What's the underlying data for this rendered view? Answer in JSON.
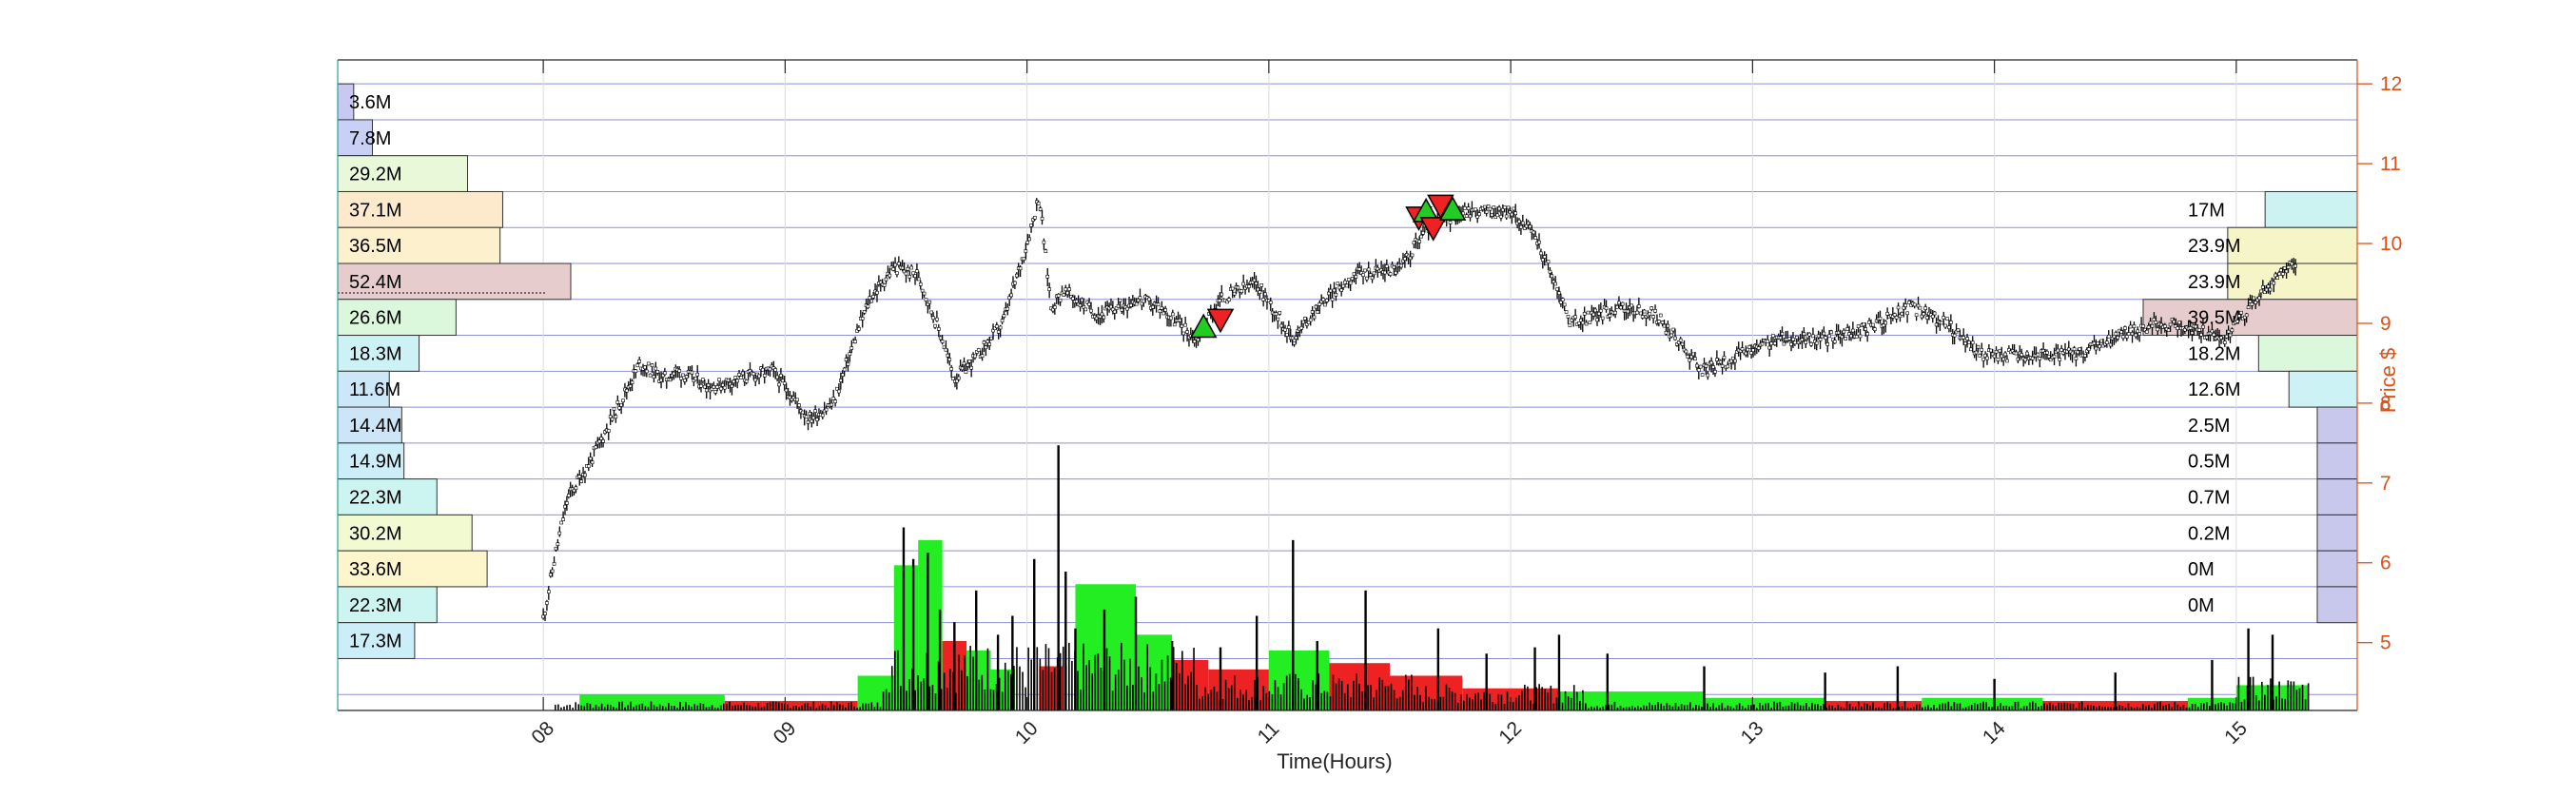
{
  "chart_data": {
    "type": "candlestick-volume-profile",
    "xlabel": "Time(Hours)",
    "ylabel": "Price $",
    "xlim": [
      7.15,
      15.5
    ],
    "ylim": [
      4.15,
      12.3
    ],
    "x_ticks": [
      8,
      9,
      10,
      11,
      12,
      13,
      14,
      15
    ],
    "x_tick_labels": [
      "08",
      "09",
      "10",
      "11",
      "12",
      "13",
      "14",
      "15"
    ],
    "y_ticks": [
      5,
      6,
      7,
      8,
      9,
      10,
      11,
      12
    ],
    "grid": true,
    "colors": {
      "axis_right": "#d95319",
      "grid": "#8f8fd6",
      "up_volume": "#22ee22",
      "down_volume": "#ee2222",
      "candle": "#000000"
    },
    "price_levels": [
      {
        "price": 12.0,
        "left": "3.6M",
        "right": "17M"
      },
      {
        "price": 11.0,
        "left": "7.8M",
        "right": "23.9M"
      },
      {
        "price": 10.0,
        "left": "29.2M",
        "right": "23.9M"
      },
      {
        "price": 9.0,
        "left": "37.1M",
        "right": "39.5M"
      },
      {
        "price": 8.0,
        "left": "36.5M",
        "right": "18.2M"
      },
      {
        "price": 7.0,
        "left": "52.4M",
        "right": "12.6M"
      },
      {
        "price": 6.0,
        "left": "26.6M",
        "right": "2.5M"
      },
      {
        "price": 5.0,
        "left": "18.3M",
        "right": "0.5M"
      }
    ],
    "left_profile": [
      {
        "label": "3.6M",
        "value": 3.6,
        "price_low": 11.55,
        "price_high": 12.0,
        "color": "#c8c8f0"
      },
      {
        "label": "7.8M",
        "value": 7.8,
        "price_low": 11.1,
        "price_high": 11.55,
        "color": "#c8d0f5"
      },
      {
        "label": "29.2M",
        "value": 29.2,
        "price_low": 10.65,
        "price_high": 11.1,
        "color": "#e8f8d8"
      },
      {
        "label": "37.1M",
        "value": 37.1,
        "price_low": 10.2,
        "price_high": 10.65,
        "color": "#fde9cc"
      },
      {
        "label": "36.5M",
        "value": 36.5,
        "price_low": 9.75,
        "price_high": 10.2,
        "color": "#fdf0cc"
      },
      {
        "label": "52.4M",
        "value": 52.4,
        "price_low": 9.3,
        "price_high": 9.75,
        "color": "#e6cccc"
      },
      {
        "label": "26.6M",
        "value": 26.6,
        "price_low": 8.85,
        "price_high": 9.3,
        "color": "#dcf8dc"
      },
      {
        "label": "18.3M",
        "value": 18.3,
        "price_low": 8.4,
        "price_high": 8.85,
        "color": "#ccf2f5"
      },
      {
        "label": "11.6M",
        "value": 11.6,
        "price_low": 7.95,
        "price_high": 8.4,
        "color": "#cce8f8"
      },
      {
        "label": "14.4M",
        "value": 14.4,
        "price_low": 7.5,
        "price_high": 7.95,
        "color": "#cce6f8"
      },
      {
        "label": "14.9M",
        "value": 14.9,
        "price_low": 7.05,
        "price_high": 7.5,
        "color": "#cceef8"
      },
      {
        "label": "22.3M",
        "value": 22.3,
        "price_low": 6.6,
        "price_high": 7.05,
        "color": "#ccf5f2"
      },
      {
        "label": "30.2M",
        "value": 30.2,
        "price_low": 6.15,
        "price_high": 6.6,
        "color": "#f2fad2"
      },
      {
        "label": "33.6M",
        "value": 33.6,
        "price_low": 5.7,
        "price_high": 6.15,
        "color": "#fdf6cc"
      },
      {
        "label": "22.3M",
        "value": 22.3,
        "price_low": 5.25,
        "price_high": 5.7,
        "color": "#ccf5f2"
      },
      {
        "label": "17.3M",
        "value": 17.3,
        "price_low": 4.8,
        "price_high": 5.25,
        "color": "#cceef8"
      }
    ],
    "right_profile": [
      {
        "label": "17M",
        "value": 17.0,
        "price_low": 10.2,
        "price_high": 10.65,
        "color": "#ccf2f2"
      },
      {
        "label": "23.9M",
        "value": 23.9,
        "price_low": 9.75,
        "price_high": 10.2,
        "color": "#f5f5c8"
      },
      {
        "label": "23.9M",
        "value": 23.9,
        "price_low": 9.3,
        "price_high": 9.75,
        "color": "#f5f5c8"
      },
      {
        "label": "39.5M",
        "value": 39.5,
        "price_low": 8.85,
        "price_high": 9.3,
        "color": "#e6cccc"
      },
      {
        "label": "18.2M",
        "value": 18.2,
        "price_low": 8.4,
        "price_high": 8.85,
        "color": "#dcf8dc"
      },
      {
        "label": "12.6M",
        "value": 12.6,
        "price_low": 7.95,
        "price_high": 8.4,
        "color": "#ccf2f5"
      },
      {
        "label": "2.5M",
        "value": 2.5,
        "price_low": 7.5,
        "price_high": 7.95,
        "color": "#c8c8ec"
      },
      {
        "label": "0.5M",
        "value": 0.5,
        "price_low": 7.05,
        "price_high": 7.5,
        "color": "#c8c8ec"
      },
      {
        "label": "0.7M",
        "value": 0.7,
        "price_low": 6.6,
        "price_high": 7.05,
        "color": "#c8c8ec"
      },
      {
        "label": "0.2M",
        "value": 0.2,
        "price_low": 6.15,
        "price_high": 6.6,
        "color": "#c8c8ec"
      },
      {
        "label": "0M",
        "value": 0.0,
        "price_low": 5.7,
        "price_high": 6.15,
        "color": "#c8c8ec"
      },
      {
        "label": "0M",
        "value": 0.0,
        "price_low": 5.25,
        "price_high": 5.7,
        "color": "#c8c8ec"
      }
    ],
    "poc_price": 9.5,
    "price_series": {
      "x": [
        8.0,
        8.05,
        8.1,
        8.2,
        8.3,
        8.4,
        8.5,
        8.55,
        8.7,
        8.8,
        8.95,
        9.1,
        9.2,
        9.3,
        9.35,
        9.45,
        9.55,
        9.65,
        9.7,
        9.8,
        9.9,
        10.0,
        10.05,
        10.1,
        10.15,
        10.3,
        10.45,
        10.55,
        10.7,
        10.8,
        10.95,
        11.1,
        11.2,
        11.35,
        11.55,
        11.65,
        11.8,
        12.0,
        12.1,
        12.25,
        12.45,
        12.6,
        12.8,
        12.95,
        13.1,
        13.3,
        13.45,
        13.65,
        13.8,
        13.95,
        14.15,
        14.35,
        14.55,
        14.7,
        14.85,
        14.95,
        15.05,
        15.15,
        15.25
      ],
      "y": [
        5.3,
        6.1,
        6.8,
        7.3,
        7.9,
        8.5,
        8.3,
        8.4,
        8.2,
        8.3,
        8.4,
        7.8,
        8.0,
        8.9,
        9.3,
        9.7,
        9.6,
        8.8,
        8.3,
        8.6,
        9.0,
        10.0,
        10.6,
        9.2,
        9.4,
        9.1,
        9.3,
        9.2,
        8.8,
        9.3,
        9.5,
        8.8,
        9.2,
        9.6,
        9.7,
        10.2,
        10.4,
        10.4,
        10.1,
        9.0,
        9.2,
        9.1,
        8.4,
        8.6,
        8.8,
        8.8,
        8.9,
        9.2,
        9.0,
        8.6,
        8.6,
        8.6,
        8.9,
        9.0,
        8.9,
        8.8,
        9.2,
        9.5,
        9.8
      ]
    },
    "markers": [
      {
        "type": "buy",
        "x": 10.73,
        "y": 8.95,
        "color": "#22cc22"
      },
      {
        "type": "sell",
        "x": 10.8,
        "y": 9.05,
        "color": "#ee2222"
      },
      {
        "type": "sell",
        "x": 11.62,
        "y": 10.33,
        "color": "#ee2222"
      },
      {
        "type": "buy",
        "x": 11.65,
        "y": 10.4,
        "color": "#22cc22"
      },
      {
        "type": "sell",
        "x": 11.68,
        "y": 10.2,
        "color": "#ee2222"
      },
      {
        "type": "sell",
        "x": 11.71,
        "y": 10.48,
        "color": "#ee2222"
      },
      {
        "type": "buy",
        "x": 11.76,
        "y": 10.42,
        "color": "#22cc22"
      }
    ],
    "volume_blocks": [
      {
        "x0": 8.15,
        "x1": 8.75,
        "value": 0.25,
        "side": "up"
      },
      {
        "x0": 8.75,
        "x1": 9.3,
        "value": 0.15,
        "side": "down"
      },
      {
        "x0": 9.3,
        "x1": 9.45,
        "value": 0.55,
        "side": "up"
      },
      {
        "x0": 9.45,
        "x1": 9.55,
        "value": 2.3,
        "side": "up"
      },
      {
        "x0": 9.55,
        "x1": 9.65,
        "value": 2.7,
        "side": "up"
      },
      {
        "x0": 9.65,
        "x1": 9.75,
        "value": 1.1,
        "side": "down"
      },
      {
        "x0": 9.75,
        "x1": 9.85,
        "value": 0.95,
        "side": "up"
      },
      {
        "x0": 9.85,
        "x1": 9.95,
        "value": 0.65,
        "side": "up"
      },
      {
        "x0": 10.05,
        "x1": 10.15,
        "value": 0.7,
        "side": "down"
      },
      {
        "x0": 10.2,
        "x1": 10.45,
        "value": 2.0,
        "side": "up"
      },
      {
        "x0": 10.45,
        "x1": 10.6,
        "value": 1.2,
        "side": "up"
      },
      {
        "x0": 10.6,
        "x1": 10.75,
        "value": 0.8,
        "side": "down"
      },
      {
        "x0": 10.75,
        "x1": 11.0,
        "value": 0.65,
        "side": "down"
      },
      {
        "x0": 11.0,
        "x1": 11.25,
        "value": 0.95,
        "side": "up"
      },
      {
        "x0": 11.25,
        "x1": 11.5,
        "value": 0.75,
        "side": "down"
      },
      {
        "x0": 11.5,
        "x1": 11.8,
        "value": 0.55,
        "side": "down"
      },
      {
        "x0": 11.8,
        "x1": 12.2,
        "value": 0.35,
        "side": "down"
      },
      {
        "x0": 12.2,
        "x1": 12.8,
        "value": 0.3,
        "side": "up"
      },
      {
        "x0": 12.8,
        "x1": 13.3,
        "value": 0.2,
        "side": "up"
      },
      {
        "x0": 13.3,
        "x1": 13.7,
        "value": 0.15,
        "side": "down"
      },
      {
        "x0": 13.7,
        "x1": 14.2,
        "value": 0.2,
        "side": "up"
      },
      {
        "x0": 14.2,
        "x1": 14.8,
        "value": 0.15,
        "side": "down"
      },
      {
        "x0": 14.8,
        "x1": 15.0,
        "value": 0.2,
        "side": "up"
      },
      {
        "x0": 15.0,
        "x1": 15.3,
        "value": 0.4,
        "side": "up"
      }
    ],
    "volume_spikes": [
      {
        "x": 9.49,
        "value": 2.9
      },
      {
        "x": 9.53,
        "value": 2.4
      },
      {
        "x": 9.59,
        "value": 2.5
      },
      {
        "x": 9.64,
        "value": 1.6
      },
      {
        "x": 9.7,
        "value": 1.4
      },
      {
        "x": 9.79,
        "value": 1.9
      },
      {
        "x": 9.88,
        "value": 1.2
      },
      {
        "x": 9.94,
        "value": 1.5
      },
      {
        "x": 10.03,
        "value": 2.4
      },
      {
        "x": 10.13,
        "value": 4.2
      },
      {
        "x": 10.16,
        "value": 2.2
      },
      {
        "x": 10.2,
        "value": 1.3
      },
      {
        "x": 10.32,
        "value": 1.6
      },
      {
        "x": 10.45,
        "value": 1.8
      },
      {
        "x": 10.6,
        "value": 1.1
      },
      {
        "x": 10.8,
        "value": 1.0
      },
      {
        "x": 10.95,
        "value": 1.5
      },
      {
        "x": 11.1,
        "value": 2.7
      },
      {
        "x": 11.2,
        "value": 1.1
      },
      {
        "x": 11.4,
        "value": 1.9
      },
      {
        "x": 11.7,
        "value": 1.3
      },
      {
        "x": 11.9,
        "value": 0.9
      },
      {
        "x": 12.1,
        "value": 1.0
      },
      {
        "x": 12.2,
        "value": 1.2
      },
      {
        "x": 12.4,
        "value": 0.9
      },
      {
        "x": 12.8,
        "value": 0.7
      },
      {
        "x": 13.3,
        "value": 0.6
      },
      {
        "x": 13.6,
        "value": 0.7
      },
      {
        "x": 14.0,
        "value": 0.5
      },
      {
        "x": 14.5,
        "value": 0.6
      },
      {
        "x": 14.9,
        "value": 0.8
      },
      {
        "x": 15.05,
        "value": 1.3
      },
      {
        "x": 15.15,
        "value": 1.2
      }
    ],
    "volume_max": 4.4
  }
}
